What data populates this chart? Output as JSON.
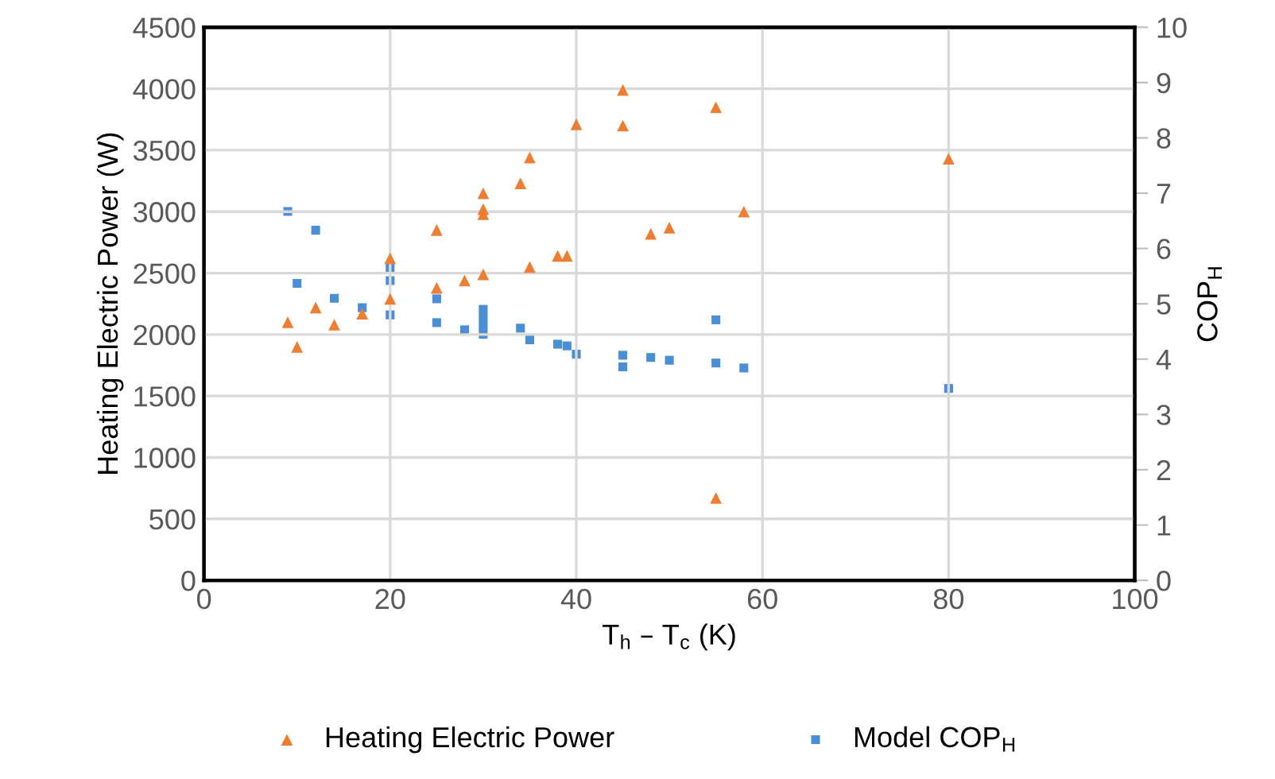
{
  "chart_data": {
    "type": "scatter",
    "xlabel": "T$_{h}$ – T$_{c}$ (K)",
    "ylabel": "Heating Electric Power (W)",
    "y2label": "COP$_{H}$",
    "xlim": [
      0,
      100
    ],
    "xticks": [
      0,
      20,
      40,
      60,
      80,
      100
    ],
    "ylim": [
      0,
      4500
    ],
    "yticks": [
      0,
      500,
      1000,
      1500,
      2000,
      2500,
      3000,
      3500,
      4000,
      4500
    ],
    "y2lim": [
      0,
      10
    ],
    "y2ticks": [
      0,
      1,
      2,
      3,
      4,
      5,
      6,
      7,
      8,
      9,
      10
    ],
    "grid": true,
    "legend": "bottom",
    "series": [
      {
        "name": "Heating Electric Power",
        "color": "#ed7d31",
        "marker": "triangle",
        "x": [
          9,
          10,
          12,
          14,
          17,
          20,
          20,
          25,
          25,
          28,
          30,
          30,
          30,
          30,
          34,
          35,
          35,
          38,
          39,
          40,
          45,
          45,
          48,
          50,
          55,
          55,
          58,
          80
        ],
        "values": [
          2100,
          1900,
          2220,
          2080,
          2170,
          2620,
          2290,
          2850,
          2380,
          2440,
          3150,
          3020,
          2980,
          2490,
          3230,
          3440,
          2550,
          2640,
          2640,
          3710,
          3990,
          3700,
          2820,
          2870,
          3850,
          670,
          3000,
          3430
        ]
      },
      {
        "name": "Model COP$_{H}$",
        "color": "#4a8fd6",
        "marker": "square",
        "axis": "y2",
        "x": [
          9,
          12,
          10,
          14,
          17,
          20,
          20,
          20,
          25,
          25,
          28,
          30,
          30,
          30,
          30,
          34,
          35,
          38,
          39,
          40,
          45,
          45,
          48,
          50,
          55,
          55,
          58,
          80
        ],
        "values": [
          6.67,
          6.33,
          5.37,
          5.1,
          4.93,
          5.64,
          5.42,
          4.8,
          5.09,
          4.66,
          4.53,
          4.45,
          4.6,
          4.75,
          4.9,
          4.56,
          4.35,
          4.27,
          4.24,
          4.09,
          4.07,
          3.86,
          4.03,
          3.98,
          4.71,
          3.93,
          3.84,
          3.47
        ]
      }
    ]
  }
}
